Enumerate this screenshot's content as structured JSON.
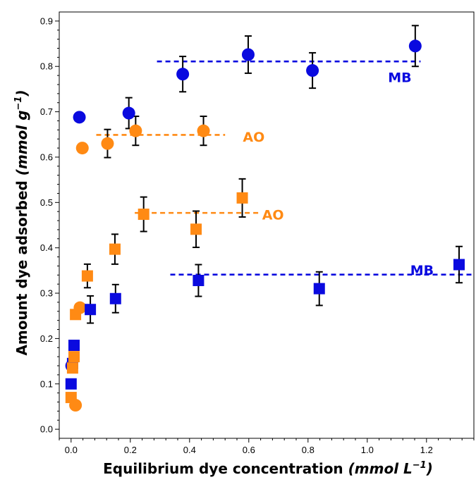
{
  "chart_data": {
    "type": "scatter",
    "title": "",
    "xlabel_main": "Equilibrium dye concentration",
    "xlabel_unit_prefix": "(mmol L",
    "xlabel_unit_sup": "−1",
    "xlabel_unit_suffix": ")",
    "ylabel_main": "Amount dye adsorbed",
    "ylabel_unit_prefix": "(mmol g",
    "ylabel_unit_sup": "−1",
    "ylabel_unit_suffix": ")",
    "xlim": [
      -0.04,
      1.36
    ],
    "ylim": [
      -0.02,
      0.92
    ],
    "x_ticks": [
      0.0,
      0.2,
      0.4,
      0.6,
      0.8,
      1.0,
      1.2
    ],
    "x_tick_labels": [
      "0.0",
      "0.2",
      "0.4",
      "0.6",
      "0.8",
      "1.0",
      "1.2"
    ],
    "y_ticks": [
      0.0,
      0.1,
      0.2,
      0.3,
      0.4,
      0.5,
      0.6,
      0.7,
      0.8,
      0.9
    ],
    "y_tick_labels": [
      "0.0",
      "0.1",
      "0.2",
      "0.3",
      "0.4",
      "0.5",
      "0.6",
      "0.7",
      "0.8",
      "0.9"
    ],
    "grid": false,
    "colors": {
      "blue": "#0a0adf",
      "orange": "#ff8a14"
    },
    "series": [
      {
        "marker": "circle",
        "color": "#0a0adf",
        "x": [
          0.002,
          0.028,
          0.195,
          0.377,
          0.598,
          0.815,
          1.162
        ],
        "y": [
          0.14,
          0.688,
          0.697,
          0.783,
          0.826,
          0.791,
          0.845
        ],
        "err": [
          null,
          null,
          0.034,
          0.039,
          0.041,
          0.039,
          0.045
        ]
      },
      {
        "marker": "circle",
        "color": "#ff8a14",
        "x": [
          0.015,
          0.03,
          0.038,
          0.123,
          0.218,
          0.447
        ],
        "y": [
          0.053,
          0.268,
          0.62,
          0.63,
          0.658,
          0.658
        ],
        "err": [
          null,
          null,
          null,
          0.031,
          0.032,
          0.032
        ]
      },
      {
        "marker": "square",
        "color": "#0a0adf",
        "x": [
          0.0,
          0.005,
          0.01,
          0.065,
          0.15,
          0.43,
          0.838,
          1.31
        ],
        "y": [
          0.1,
          0.145,
          0.185,
          0.264,
          0.288,
          0.328,
          0.31,
          0.363
        ],
        "err": [
          null,
          null,
          null,
          0.03,
          0.031,
          0.035,
          0.037,
          0.04
        ]
      },
      {
        "marker": "square",
        "color": "#ff8a14",
        "x": [
          0.0,
          0.005,
          0.01,
          0.015,
          0.055,
          0.148,
          0.245,
          0.422,
          0.578
        ],
        "y": [
          0.07,
          0.135,
          0.16,
          0.253,
          0.338,
          0.397,
          0.474,
          0.441,
          0.51
        ],
        "err": [
          null,
          null,
          null,
          null,
          0.026,
          0.033,
          0.038,
          0.04,
          0.042
        ]
      }
    ],
    "plateau_lines": [
      {
        "color": "#0a0adf",
        "x": [
          0.29,
          1.18
        ],
        "y": 0.811,
        "label": "MB",
        "label_pos": [
          1.07,
          0.776
        ]
      },
      {
        "color": "#ff8a14",
        "x": [
          0.085,
          0.52
        ],
        "y": 0.649,
        "label": "AO",
        "label_pos": [
          0.58,
          0.645
        ]
      },
      {
        "color": "#ff8a14",
        "x": [
          0.215,
          0.64
        ],
        "y": 0.477,
        "label": "AO",
        "label_pos": [
          0.645,
          0.473
        ]
      },
      {
        "color": "#0a0adf",
        "x": [
          0.335,
          1.36
        ],
        "y": 0.341,
        "label": "MB",
        "label_pos": [
          1.145,
          0.351
        ]
      }
    ]
  }
}
